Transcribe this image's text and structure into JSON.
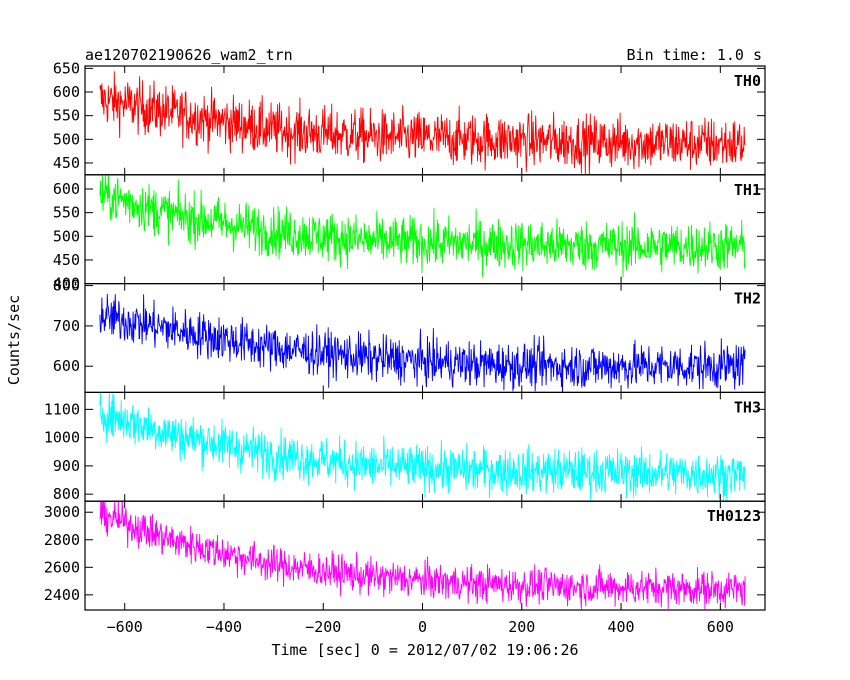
{
  "header": {
    "title": "ae120702190626_wam2_trn",
    "bin_time": "Bin time: 1.0 s"
  },
  "chart_data": {
    "type": "line",
    "title": "ae120702190626_wam2_trn",
    "xlabel": "Time [sec] 0 = 2012/07/02 19:06:26",
    "ylabel": "Counts/sec",
    "xlim": [
      -680,
      690
    ],
    "xticks": [
      -600,
      -400,
      -200,
      0,
      200,
      400,
      600
    ],
    "x_range_data": [
      -650,
      650
    ],
    "panels": [
      {
        "name": "TH0",
        "color": "#ff0000",
        "ylim": [
          425,
          655
        ],
        "yticks": [
          450,
          500,
          550,
          600,
          650
        ],
        "trend": [
          [
            -650,
            585
          ],
          [
            -500,
            555
          ],
          [
            -300,
            520
          ],
          [
            -100,
            505
          ],
          [
            100,
            500
          ],
          [
            300,
            495
          ],
          [
            650,
            490
          ]
        ],
        "noise": 28
      },
      {
        "name": "TH1",
        "color": "#00ff00",
        "ylim": [
          400,
          630
        ],
        "yticks": [
          400,
          450,
          500,
          550,
          600
        ],
        "trend": [
          [
            -650,
            590
          ],
          [
            -500,
            545
          ],
          [
            -300,
            510
          ],
          [
            -100,
            490
          ],
          [
            100,
            485
          ],
          [
            300,
            480
          ],
          [
            650,
            478
          ]
        ],
        "noise": 26
      },
      {
        "name": "TH2",
        "color": "#0000ff",
        "ylim": [
          535,
          805
        ],
        "yticks": [
          600,
          700,
          800
        ],
        "trend": [
          [
            -650,
            725
          ],
          [
            -500,
            690
          ],
          [
            -300,
            645
          ],
          [
            -100,
            620
          ],
          [
            100,
            605
          ],
          [
            300,
            600
          ],
          [
            650,
            600
          ]
        ],
        "noise": 28
      },
      {
        "name": "TH3",
        "color": "#00ffff",
        "ylim": [
          775,
          1160
        ],
        "yticks": [
          800,
          900,
          1000,
          1100
        ],
        "trend": [
          [
            -650,
            1090
          ],
          [
            -500,
            1010
          ],
          [
            -300,
            940
          ],
          [
            -100,
            900
          ],
          [
            100,
            885
          ],
          [
            300,
            880
          ],
          [
            650,
            870
          ]
        ],
        "noise": 40
      },
      {
        "name": "TH0123",
        "color": "#ff00ff",
        "ylim": [
          2290,
          3080
        ],
        "yticks": [
          2400,
          2600,
          2800,
          3000
        ],
        "trend": [
          [
            -650,
            2990
          ],
          [
            -500,
            2790
          ],
          [
            -300,
            2620
          ],
          [
            -100,
            2530
          ],
          [
            100,
            2480
          ],
          [
            300,
            2460
          ],
          [
            650,
            2440
          ]
        ],
        "noise": 65
      }
    ]
  }
}
